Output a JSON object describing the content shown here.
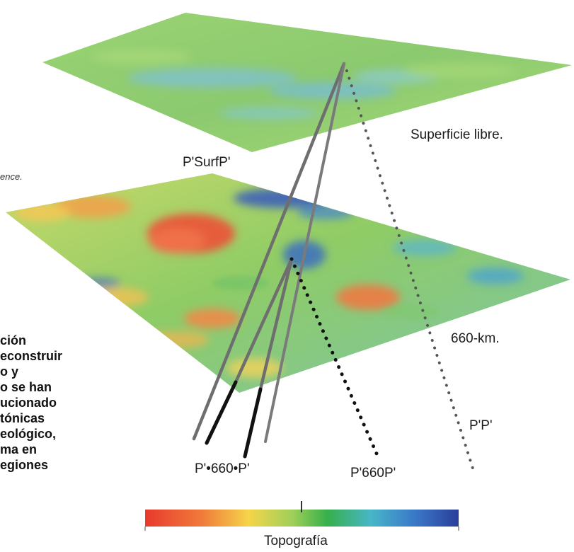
{
  "labels": {
    "free_surface": "Superficie libre.",
    "surf_ray": "P'SurfP'",
    "km660": "660-km.",
    "pp": "P'P'",
    "p660p": "P'660P'",
    "p_dot_660": "P'•660•P'",
    "colorbar_title": "Topografía"
  },
  "left_fragments": {
    "caption": "ence.",
    "text_lines": [
      "ción",
      "econstruir",
      "o y",
      "o se han",
      "ucionado",
      "tónicas",
      "eológico,",
      "ma en",
      "egiones"
    ]
  },
  "colors": {
    "colorbar_stops": [
      "#e83a2e",
      "#f07a3a",
      "#f5d54a",
      "#9fcf5a",
      "#37b04a",
      "#48b6c8",
      "#3a78c8",
      "#2a3f9a"
    ],
    "surface_green": "#8fce6e",
    "surface_blue": "#76bcd8",
    "ray_gray": "#6e6e6e",
    "ray_black": "#111111"
  }
}
